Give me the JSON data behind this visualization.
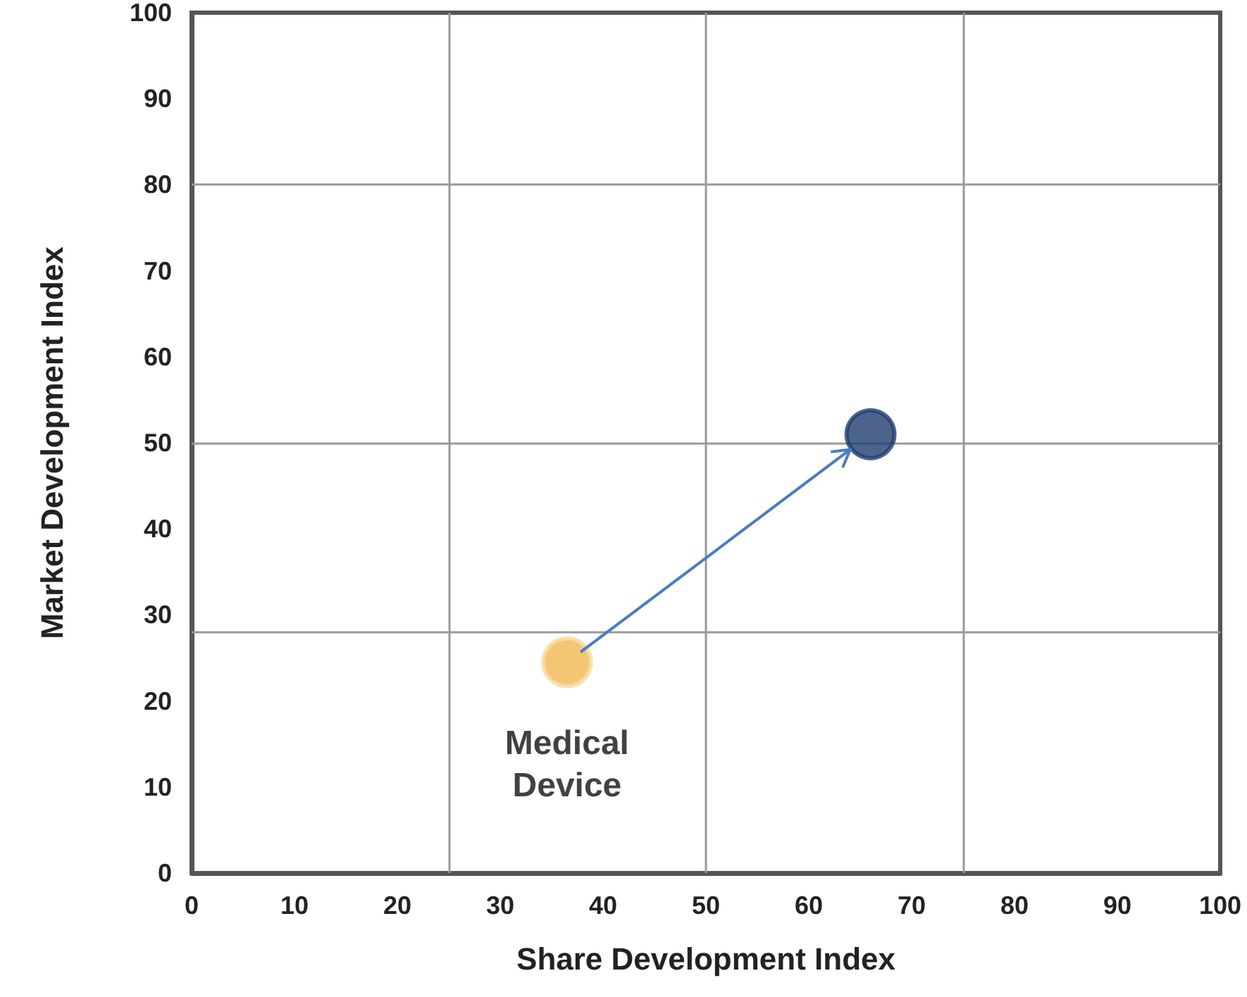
{
  "chart_data": {
    "type": "scatter",
    "xlabel": "Share Development Index",
    "ylabel": "Market Development Index",
    "xlim": [
      0,
      100
    ],
    "ylim": [
      0,
      100
    ],
    "xticks": [
      0,
      10,
      20,
      30,
      40,
      50,
      60,
      70,
      80,
      90,
      100
    ],
    "yticks": [
      0,
      10,
      20,
      30,
      40,
      50,
      60,
      70,
      80,
      90,
      100
    ],
    "grid": false,
    "legend": false,
    "ref_lines": [
      {
        "axis": "x",
        "value": 25,
        "color": "#999999"
      },
      {
        "axis": "x",
        "value": 50,
        "color": "#999999"
      },
      {
        "axis": "x",
        "value": 75,
        "color": "#999999"
      },
      {
        "axis": "y",
        "value": 28,
        "color": "#999999"
      },
      {
        "axis": "y",
        "value": 50,
        "color": "#999999"
      },
      {
        "axis": "y",
        "value": 80,
        "color": "#999999"
      }
    ],
    "series": [
      {
        "name": "Medical Device",
        "color": "#f0b850",
        "x": [
          36.5
        ],
        "values": [
          24.5
        ]
      },
      {
        "color": "#1f3d6e",
        "x": [
          66
        ],
        "values": [
          51
        ]
      }
    ]
  }
}
